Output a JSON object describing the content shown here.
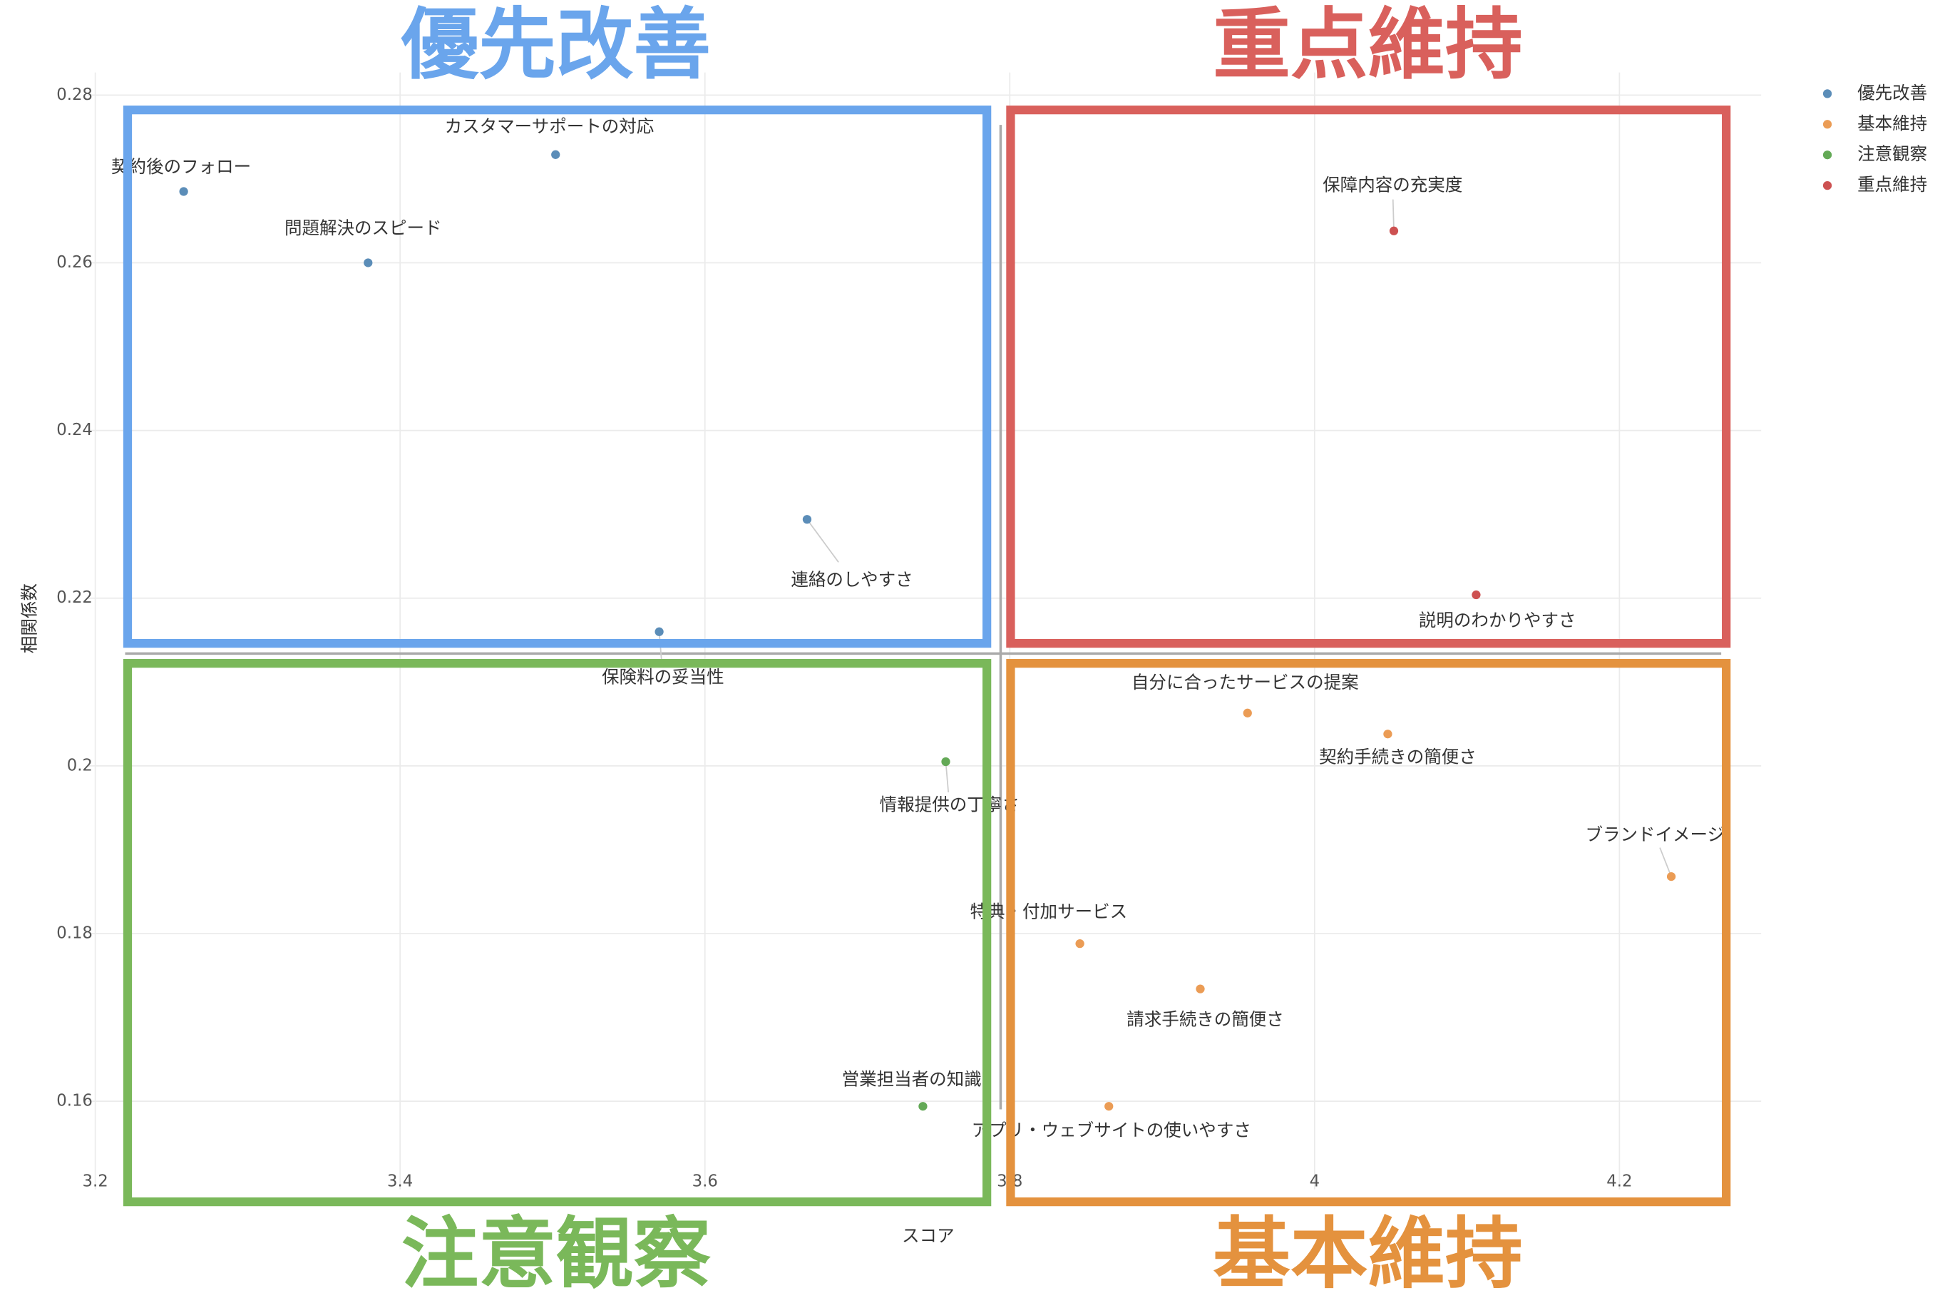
{
  "chart_data": {
    "type": "scatter",
    "x_label": "スコア",
    "y_label": "相関係数",
    "xlim": [
      3.195,
      4.293
    ],
    "ylim": [
      0.1495,
      0.2827
    ],
    "xticks": [
      3.2,
      3.4,
      3.6,
      3.8,
      4,
      4.2
    ],
    "yticks": [
      0.16,
      0.18,
      0.2,
      0.22,
      0.24,
      0.26,
      0.28
    ],
    "grid": true,
    "legend": "top-right",
    "reference_x": 3.794,
    "reference_y": 0.2134,
    "quadrant_labels": {
      "top_left": "優先改善",
      "top_right": "重点維持",
      "bottom_left": "注意観察",
      "bottom_right": "基本維持"
    },
    "series": [
      {
        "name": "優先改善",
        "color": "#5b8db8",
        "labels": [
          "契約後のフォロー",
          "カスタマーサポートの対応",
          "問題解決のスピード",
          "連絡のしやすさ",
          "保険料の妥当性"
        ],
        "x": [
          3.258,
          3.502,
          3.379,
          3.667,
          3.57
        ],
        "values": [
          0.2685,
          0.2729,
          0.26,
          0.2294,
          0.216
        ]
      },
      {
        "name": "基本維持",
        "color": "#eb9c55",
        "labels": [
          "自分に合ったサービスの提案",
          "契約手続きの簡便さ",
          "ブランドイメージ",
          "特典・付加サービス",
          "請求手続きの簡便さ",
          "アプリ・ウェブサイトの使いやすさ"
        ],
        "x": [
          3.956,
          4.048,
          4.234,
          3.846,
          3.925,
          3.865
        ],
        "values": [
          0.2063,
          0.2038,
          0.1868,
          0.1788,
          0.1734,
          0.1594
        ]
      },
      {
        "name": "注意観察",
        "color": "#63a956",
        "labels": [
          "情報提供の丁寧さ",
          "営業担当者の知識"
        ],
        "x": [
          3.758,
          3.743
        ],
        "values": [
          0.2005,
          0.1594
        ]
      },
      {
        "name": "重点維持",
        "color": "#cd5151",
        "labels": [
          "保障内容の充実度",
          "説明のわかりやすさ"
        ],
        "x": [
          4.052,
          4.106
        ],
        "values": [
          0.2638,
          0.2204
        ]
      }
    ]
  }
}
